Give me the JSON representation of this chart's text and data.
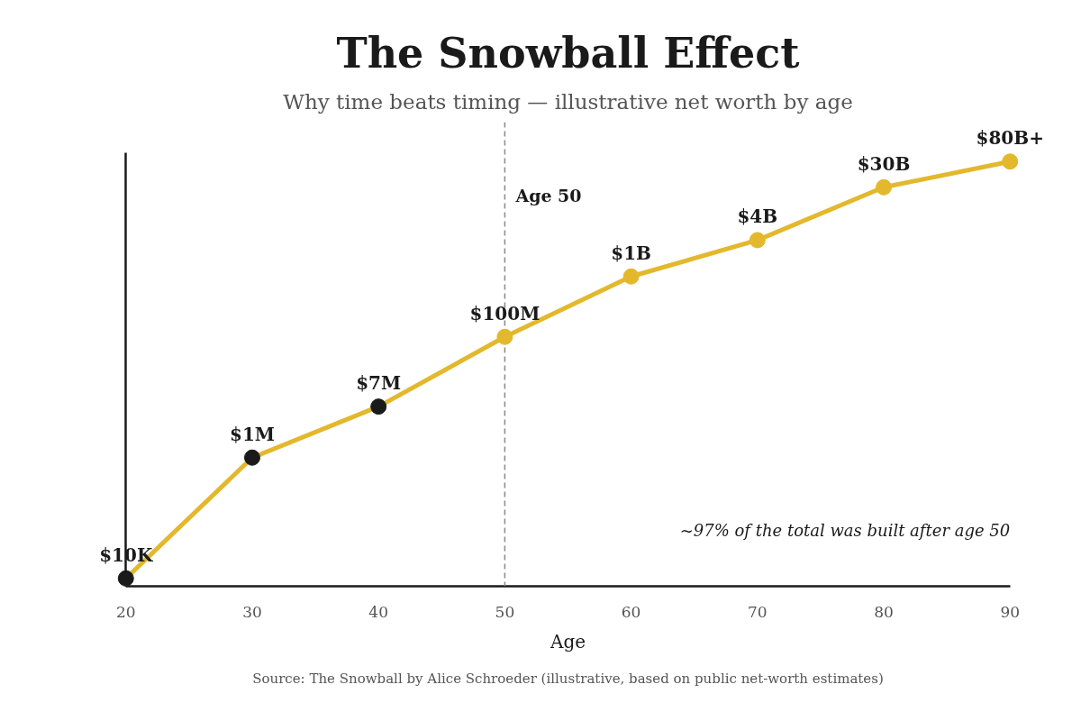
{
  "chart_data": {
    "type": "line",
    "title": "The Snowball Effect",
    "subtitle": "Why time beats timing — illustrative net worth by age",
    "xlabel": "Age",
    "x": [
      20,
      30,
      40,
      50,
      60,
      70,
      80,
      90
    ],
    "xlim": [
      20,
      90
    ],
    "xticks": [
      20,
      30,
      40,
      50,
      60,
      70,
      80,
      90
    ],
    "log": true,
    "marker": "circle",
    "series": [
      {
        "color": "#e3b82c",
        "colors": [
          "#1a1a1a",
          "#1a1a1a",
          "#1a1a1a",
          "#e3b82c",
          "#e3b82c",
          "#e3b82c",
          "#e3b82c",
          "#e3b82c"
        ],
        "values": [
          10000,
          1000000,
          7000000,
          100000000,
          1000000000,
          4000000000,
          30000000000,
          80000000000
        ],
        "value_labels": [
          "$10K",
          "$1M",
          "$7M",
          "$100M",
          "$1B",
          "$4B",
          "$30B",
          "$80B+"
        ]
      }
    ],
    "ref_lines": [
      {
        "axis": "x",
        "value": 50,
        "label": "Age 50",
        "color": "#888888",
        "line_style": "dashed"
      }
    ],
    "annotations": [
      "~97% of the total was built after age 50",
      "Source: The Snowball by Alice Schroeder (illustrative, based on public net-worth estimates)"
    ]
  }
}
